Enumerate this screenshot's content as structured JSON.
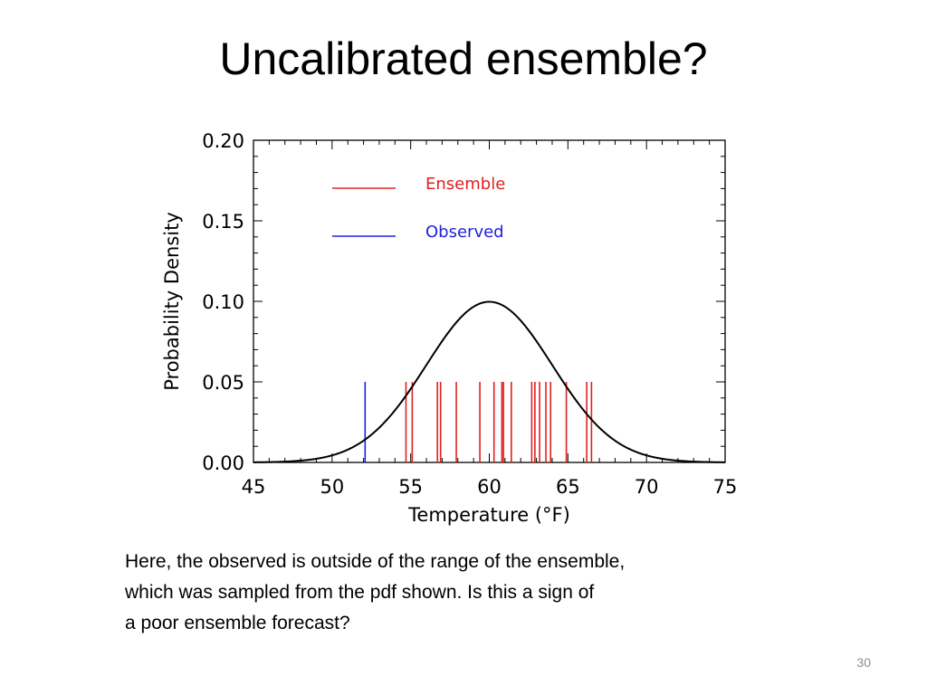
{
  "slide": {
    "title": "Uncalibrated ensemble?",
    "caption_lines": [
      "Here, the observed is outside of the range of the ensemble,",
      "which was sampled from the pdf shown.  Is this a sign of",
      "a poor ensemble forecast?"
    ],
    "slide_number": "30"
  },
  "chart_data": {
    "type": "line",
    "title": "",
    "xlabel": "Temperature (°F)",
    "ylabel": "Probability  Density",
    "xlim": [
      45,
      75
    ],
    "ylim": [
      0,
      0.2
    ],
    "x_ticks": [
      45,
      50,
      55,
      60,
      65,
      70,
      75
    ],
    "y_ticks": [
      0.0,
      0.05,
      0.1,
      0.15,
      0.2
    ],
    "y_tick_labels": [
      "0.00",
      "0.05",
      "0.10",
      "0.15",
      "0.20"
    ],
    "grid": false,
    "legend_position": "top-left",
    "legend": [
      {
        "label": "Ensemble",
        "color": "#e02020"
      },
      {
        "label": "Observed",
        "color": "#2020e0"
      }
    ],
    "pdf_curve": {
      "type": "normal",
      "mean": 60,
      "std": 4,
      "color": "#000000"
    },
    "series": [
      {
        "name": "Ensemble",
        "color": "#e02020",
        "marker_height": 0.05,
        "x": [
          54.7,
          55.1,
          56.7,
          56.9,
          57.9,
          59.4,
          60.3,
          60.8,
          60.9,
          61.4,
          62.7,
          62.9,
          63.2,
          63.6,
          63.9,
          64.9,
          66.2,
          66.5
        ]
      },
      {
        "name": "Observed",
        "color": "#2020e0",
        "marker_height": 0.05,
        "x": [
          52.1
        ]
      }
    ]
  }
}
